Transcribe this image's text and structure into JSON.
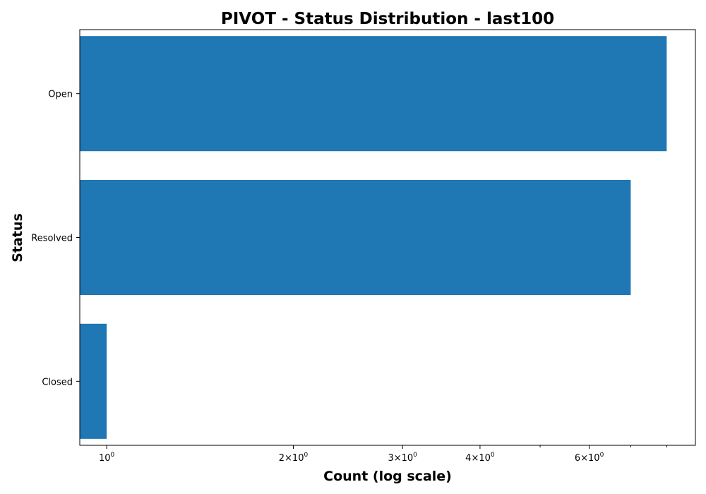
{
  "chart_data": {
    "type": "bar",
    "orientation": "horizontal",
    "title": "PIVOT - Status Distribution - last100",
    "xlabel": "Count (log scale)",
    "ylabel": "Status",
    "x_scale": "log",
    "xlim": [
      0.905,
      8.9
    ],
    "categories": [
      "Open",
      "Resolved",
      "Closed"
    ],
    "values": [
      8,
      7,
      1
    ],
    "bar_color": "#1f77b4",
    "major_ticks": [
      {
        "value": 1,
        "mantissa": "",
        "base": "10",
        "exponent": "0"
      },
      {
        "value": 2,
        "mantissa": "2",
        "base": "10",
        "exponent": "0"
      },
      {
        "value": 3,
        "mantissa": "3",
        "base": "10",
        "exponent": "0"
      },
      {
        "value": 4,
        "mantissa": "4",
        "base": "10",
        "exponent": "0"
      },
      {
        "value": 6,
        "mantissa": "6",
        "base": "10",
        "exponent": "0"
      }
    ],
    "minor_ticks": [
      5,
      7,
      8
    ],
    "times_symbol": "×",
    "grid": false,
    "legend": "none"
  }
}
